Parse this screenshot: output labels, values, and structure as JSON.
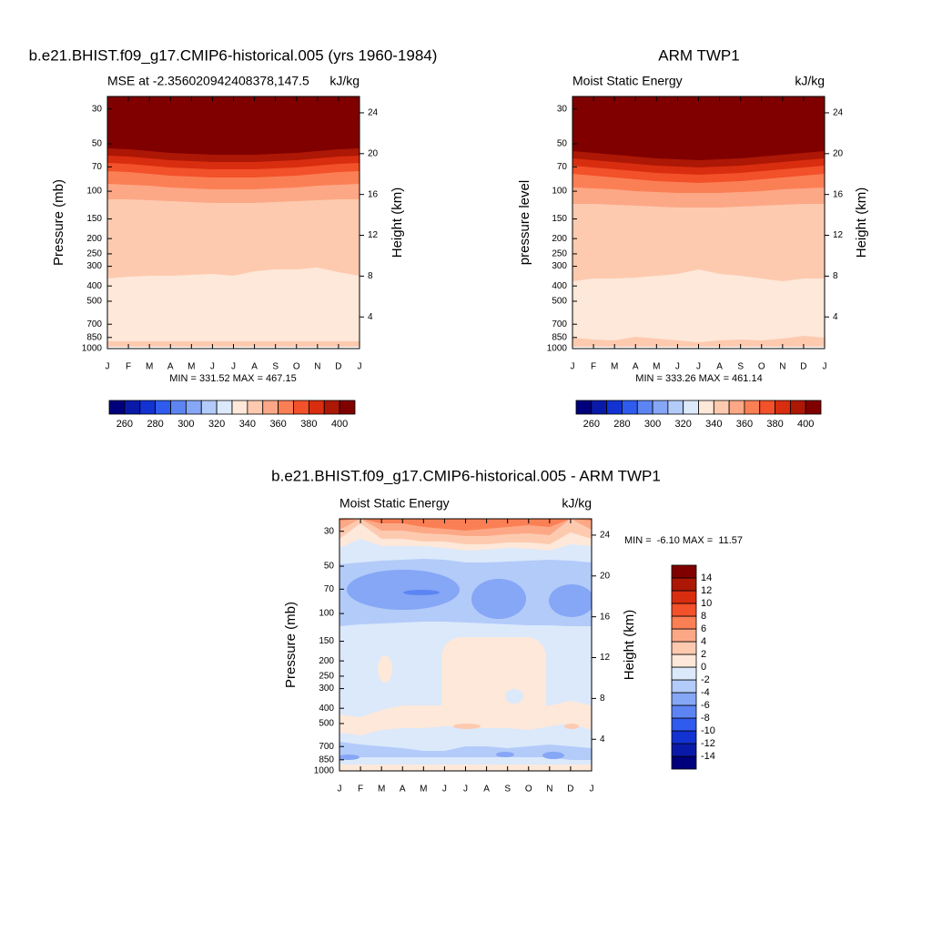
{
  "charts": [
    {
      "type": "contour",
      "title": "b.e21.BHIST.f09_g17.CMIP6-historical.005 (yrs 1960-1984)",
      "subtitle_left": "MSE at -2.356020942408378,147.5",
      "subtitle_right": "kJ/kg",
      "ylabel": "Pressure (mb)",
      "y2label": "Height (km)",
      "categories": [
        "J",
        "F",
        "M",
        "A",
        "M",
        "J",
        "J",
        "A",
        "S",
        "O",
        "N",
        "D",
        "J"
      ],
      "ylog": true,
      "ylim": [
        1000,
        25
      ],
      "yticks": [
        30,
        50,
        70,
        100,
        150,
        200,
        250,
        300,
        400,
        500,
        700,
        850,
        1000
      ],
      "y2lim": [
        0.9,
        25.6
      ],
      "y2ticks": [
        4,
        8,
        12,
        16,
        20,
        24
      ],
      "stats": "MIN = 331.52 MAX = 467.15",
      "colorbar": {
        "orientation": "horizontal",
        "levels": [
          260,
          270,
          280,
          290,
          300,
          310,
          320,
          330,
          340,
          350,
          360,
          370,
          380,
          390,
          400
        ],
        "labels": [
          260,
          280,
          300,
          320,
          340,
          360,
          380,
          400
        ],
        "colors": [
          "#00007c",
          "#0a1aa8",
          "#1232d2",
          "#2f5cef",
          "#5c85f3",
          "#86a6f6",
          "#b3cbf9",
          "#dbe9fb",
          "#fde8d9",
          "#fdcab0",
          "#fca886",
          "#fb7f55",
          "#f2512a",
          "#d92d10",
          "#ad1705",
          "#800000"
        ]
      }
    },
    {
      "type": "contour",
      "title": "ARM TWP1",
      "subtitle_left": "Moist Static Energy",
      "subtitle_right": "kJ/kg",
      "ylabel": "pressure level",
      "y2label": "Height (km)",
      "categories": [
        "J",
        "F",
        "M",
        "A",
        "M",
        "J",
        "J",
        "A",
        "S",
        "O",
        "N",
        "D",
        "J"
      ],
      "ylog": true,
      "ylim": [
        1000,
        25
      ],
      "yticks": [
        30,
        50,
        70,
        100,
        150,
        200,
        250,
        300,
        400,
        500,
        700,
        850,
        1000
      ],
      "y2lim": [
        0.9,
        25.6
      ],
      "y2ticks": [
        4,
        8,
        12,
        16,
        20,
        24
      ],
      "stats": "MIN = 333.26 MAX = 461.14",
      "colorbar": {
        "orientation": "horizontal",
        "levels": [
          260,
          270,
          280,
          290,
          300,
          310,
          320,
          330,
          340,
          350,
          360,
          370,
          380,
          390,
          400
        ],
        "labels": [
          260,
          280,
          300,
          320,
          340,
          360,
          380,
          400
        ],
        "colors": [
          "#00007c",
          "#0a1aa8",
          "#1232d2",
          "#2f5cef",
          "#5c85f3",
          "#86a6f6",
          "#b3cbf9",
          "#dbe9fb",
          "#fde8d9",
          "#fdcab0",
          "#fca886",
          "#fb7f55",
          "#f2512a",
          "#d92d10",
          "#ad1705",
          "#800000"
        ]
      }
    },
    {
      "type": "contour",
      "title": "b.e21.BHIST.f09_g17.CMIP6-historical.005 - ARM TWP1",
      "subtitle_left": "Moist Static Energy",
      "subtitle_right": "kJ/kg",
      "ylabel": "Pressure (mb)",
      "y2label": "Height (km)",
      "categories": [
        "J",
        "F",
        "M",
        "A",
        "M",
        "J",
        "J",
        "A",
        "S",
        "O",
        "N",
        "D",
        "J"
      ],
      "ylog": true,
      "ylim": [
        1000,
        25
      ],
      "yticks": [
        30,
        50,
        70,
        100,
        150,
        200,
        250,
        300,
        400,
        500,
        700,
        850,
        1000
      ],
      "y2lim": [
        0.9,
        25.6
      ],
      "y2ticks": [
        4,
        8,
        12,
        16,
        20,
        24
      ],
      "stats": "MIN =  -6.10 MAX =  11.57",
      "colorbar": {
        "orientation": "vertical",
        "levels": [
          -14,
          -12,
          -10,
          -8,
          -6,
          -4,
          -2,
          0,
          2,
          4,
          6,
          8,
          10,
          12,
          14
        ],
        "labels": [
          -14,
          -12,
          -10,
          -8,
          -6,
          -4,
          -2,
          0,
          2,
          4,
          6,
          8,
          10,
          12,
          14
        ],
        "colors": [
          "#00007c",
          "#0a1aa8",
          "#1232d2",
          "#2f5cef",
          "#5c85f3",
          "#86a6f6",
          "#b3cbf9",
          "#dbe9fb",
          "#fde8d9",
          "#fdcab0",
          "#fca886",
          "#fb7f55",
          "#f2512a",
          "#d92d10",
          "#ad1705",
          "#800000"
        ]
      }
    }
  ]
}
